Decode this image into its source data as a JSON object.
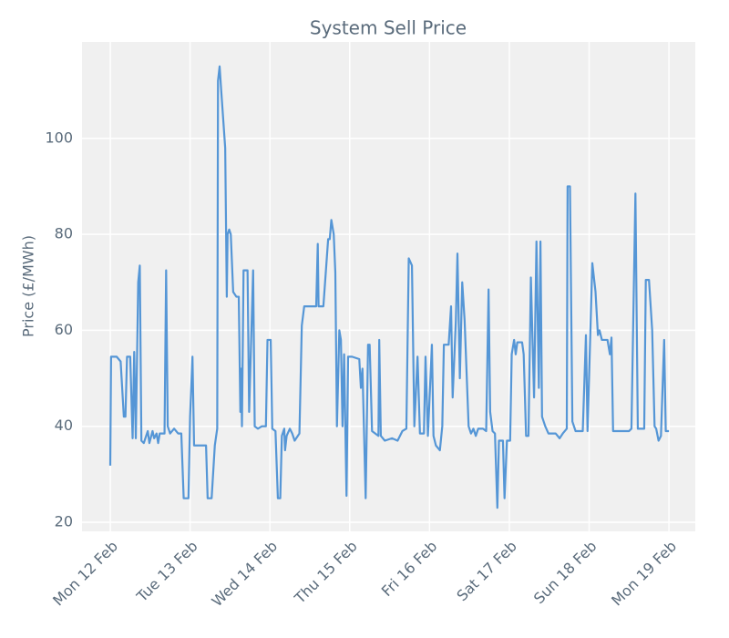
{
  "chart_data": {
    "type": "line",
    "title": "System Sell Price",
    "y_label": "Price (£/MWh)",
    "grid": true,
    "xlim": [
      -0.354,
      7.33
    ],
    "ylim": [
      18.1,
      120.1
    ],
    "yticks": [
      20,
      40,
      60,
      80,
      100
    ],
    "xticks": [
      {
        "value": 0,
        "label": "Mon 12 Feb"
      },
      {
        "value": 1,
        "label": "Tue 13 Feb"
      },
      {
        "value": 2,
        "label": "Wed 14 Feb"
      },
      {
        "value": 3,
        "label": "Thu 15 Feb"
      },
      {
        "value": 4,
        "label": "Fri 16 Feb"
      },
      {
        "value": 5,
        "label": "Sat 17 Feb"
      },
      {
        "value": 6,
        "label": "Sun 18 Feb"
      },
      {
        "value": 7,
        "label": "Mon 19 Feb"
      }
    ],
    "x": [
      0,
      0.01,
      0.08,
      0.13,
      0.17,
      0.19,
      0.21,
      0.25,
      0.28,
      0.3,
      0.32,
      0.35,
      0.37,
      0.39,
      0.42,
      0.47,
      0.49,
      0.53,
      0.55,
      0.58,
      0.6,
      0.62,
      0.68,
      0.7,
      0.72,
      0.75,
      0.8,
      0.85,
      0.89,
      0.92,
      0.98,
      1.0,
      1.03,
      1.05,
      1.2,
      1.22,
      1.27,
      1.31,
      1.34,
      1.35,
      1.37,
      1.39,
      1.44,
      1.46,
      1.47,
      1.49,
      1.51,
      1.54,
      1.58,
      1.61,
      1.63,
      1.64,
      1.65,
      1.67,
      1.72,
      1.74,
      1.79,
      1.81,
      1.85,
      1.9,
      1.95,
      1.97,
      2.01,
      2.03,
      2.07,
      2.1,
      2.13,
      2.15,
      2.18,
      2.19,
      2.21,
      2.25,
      2.28,
      2.31,
      2.37,
      2.4,
      2.43,
      2.58,
      2.6,
      2.61,
      2.67,
      2.73,
      2.75,
      2.77,
      2.8,
      2.82,
      2.84,
      2.87,
      2.89,
      2.91,
      2.93,
      2.96,
      2.98,
      3.03,
      3.12,
      3.14,
      3.16,
      3.2,
      3.23,
      3.25,
      3.28,
      3.32,
      3.36,
      3.37,
      3.39,
      3.44,
      3.53,
      3.6,
      3.66,
      3.71,
      3.74,
      3.78,
      3.81,
      3.85,
      3.88,
      3.93,
      3.95,
      3.98,
      4.03,
      4.05,
      4.08,
      4.13,
      4.16,
      4.18,
      4.24,
      4.27,
      4.29,
      4.33,
      4.35,
      4.38,
      4.41,
      4.44,
      4.49,
      4.52,
      4.55,
      4.58,
      4.61,
      4.67,
      4.71,
      4.74,
      4.76,
      4.79,
      4.82,
      4.85,
      4.87,
      4.92,
      4.94,
      4.97,
      5.01,
      5.03,
      5.06,
      5.08,
      5.1,
      5.16,
      5.18,
      5.21,
      5.24,
      5.27,
      5.31,
      5.34,
      5.37,
      5.39,
      5.41,
      5.45,
      5.49,
      5.58,
      5.63,
      5.67,
      5.72,
      5.73,
      5.76,
      5.79,
      5.83,
      5.92,
      5.96,
      5.98,
      6.04,
      6.08,
      6.11,
      6.13,
      6.16,
      6.23,
      6.26,
      6.28,
      6.3,
      6.5,
      6.53,
      6.58,
      6.61,
      6.69,
      6.71,
      6.75,
      6.79,
      6.82,
      6.84,
      6.87,
      6.9,
      6.94,
      6.96,
      7.0
    ],
    "series": [
      {
        "name": "System Sell Price",
        "color": "#5596d6",
        "values": [
          31.8,
          54.5,
          54.5,
          53.5,
          42,
          42,
          54.5,
          54.5,
          37.5,
          55.5,
          37.5,
          70,
          73.5,
          37,
          36.5,
          39,
          36.5,
          39,
          37.5,
          38.5,
          36.5,
          38.5,
          38.5,
          72.5,
          40,
          38.5,
          39.5,
          38.5,
          38.5,
          25,
          25,
          42,
          54.5,
          36,
          36,
          25,
          25,
          36,
          39.5,
          112,
          115,
          110,
          98,
          67,
          80,
          81,
          80,
          68,
          67,
          67,
          43,
          52,
          40,
          72.5,
          72.5,
          43,
          72.5,
          40,
          39.5,
          40,
          40,
          58,
          58,
          39.5,
          39,
          25,
          25,
          38,
          39.5,
          35,
          38,
          39.5,
          38.5,
          37,
          38.5,
          61,
          65,
          65,
          78,
          65,
          65,
          79,
          79,
          83,
          80,
          72,
          40,
          60,
          58,
          40,
          55,
          25.5,
          54.5,
          54.5,
          54,
          48,
          52,
          25,
          57,
          57,
          39,
          38.5,
          38,
          58,
          38,
          37,
          37.5,
          37,
          39,
          39.5,
          75,
          73.5,
          40,
          54.5,
          38.5,
          38.5,
          54.5,
          38,
          57,
          38,
          36,
          35,
          40,
          57,
          57,
          65,
          46,
          62,
          76,
          50,
          70,
          62,
          40,
          38.5,
          39.5,
          38,
          39.5,
          39.5,
          39,
          68.5,
          43,
          39,
          38.5,
          23,
          37,
          37,
          25,
          37,
          37,
          55,
          58,
          55,
          57.5,
          57.5,
          55,
          38,
          38,
          71,
          46,
          78.5,
          48,
          78.5,
          42,
          40,
          38.5,
          38.5,
          37.5,
          38.5,
          39.5,
          90,
          90,
          41,
          39,
          39,
          59,
          39,
          74,
          68,
          59,
          60,
          58,
          58,
          55,
          58.5,
          39,
          39,
          39.5,
          88.5,
          39.5,
          39.5,
          70.5,
          70.5,
          60,
          40,
          39.5,
          37,
          38,
          58,
          39,
          39
        ]
      }
    ]
  }
}
